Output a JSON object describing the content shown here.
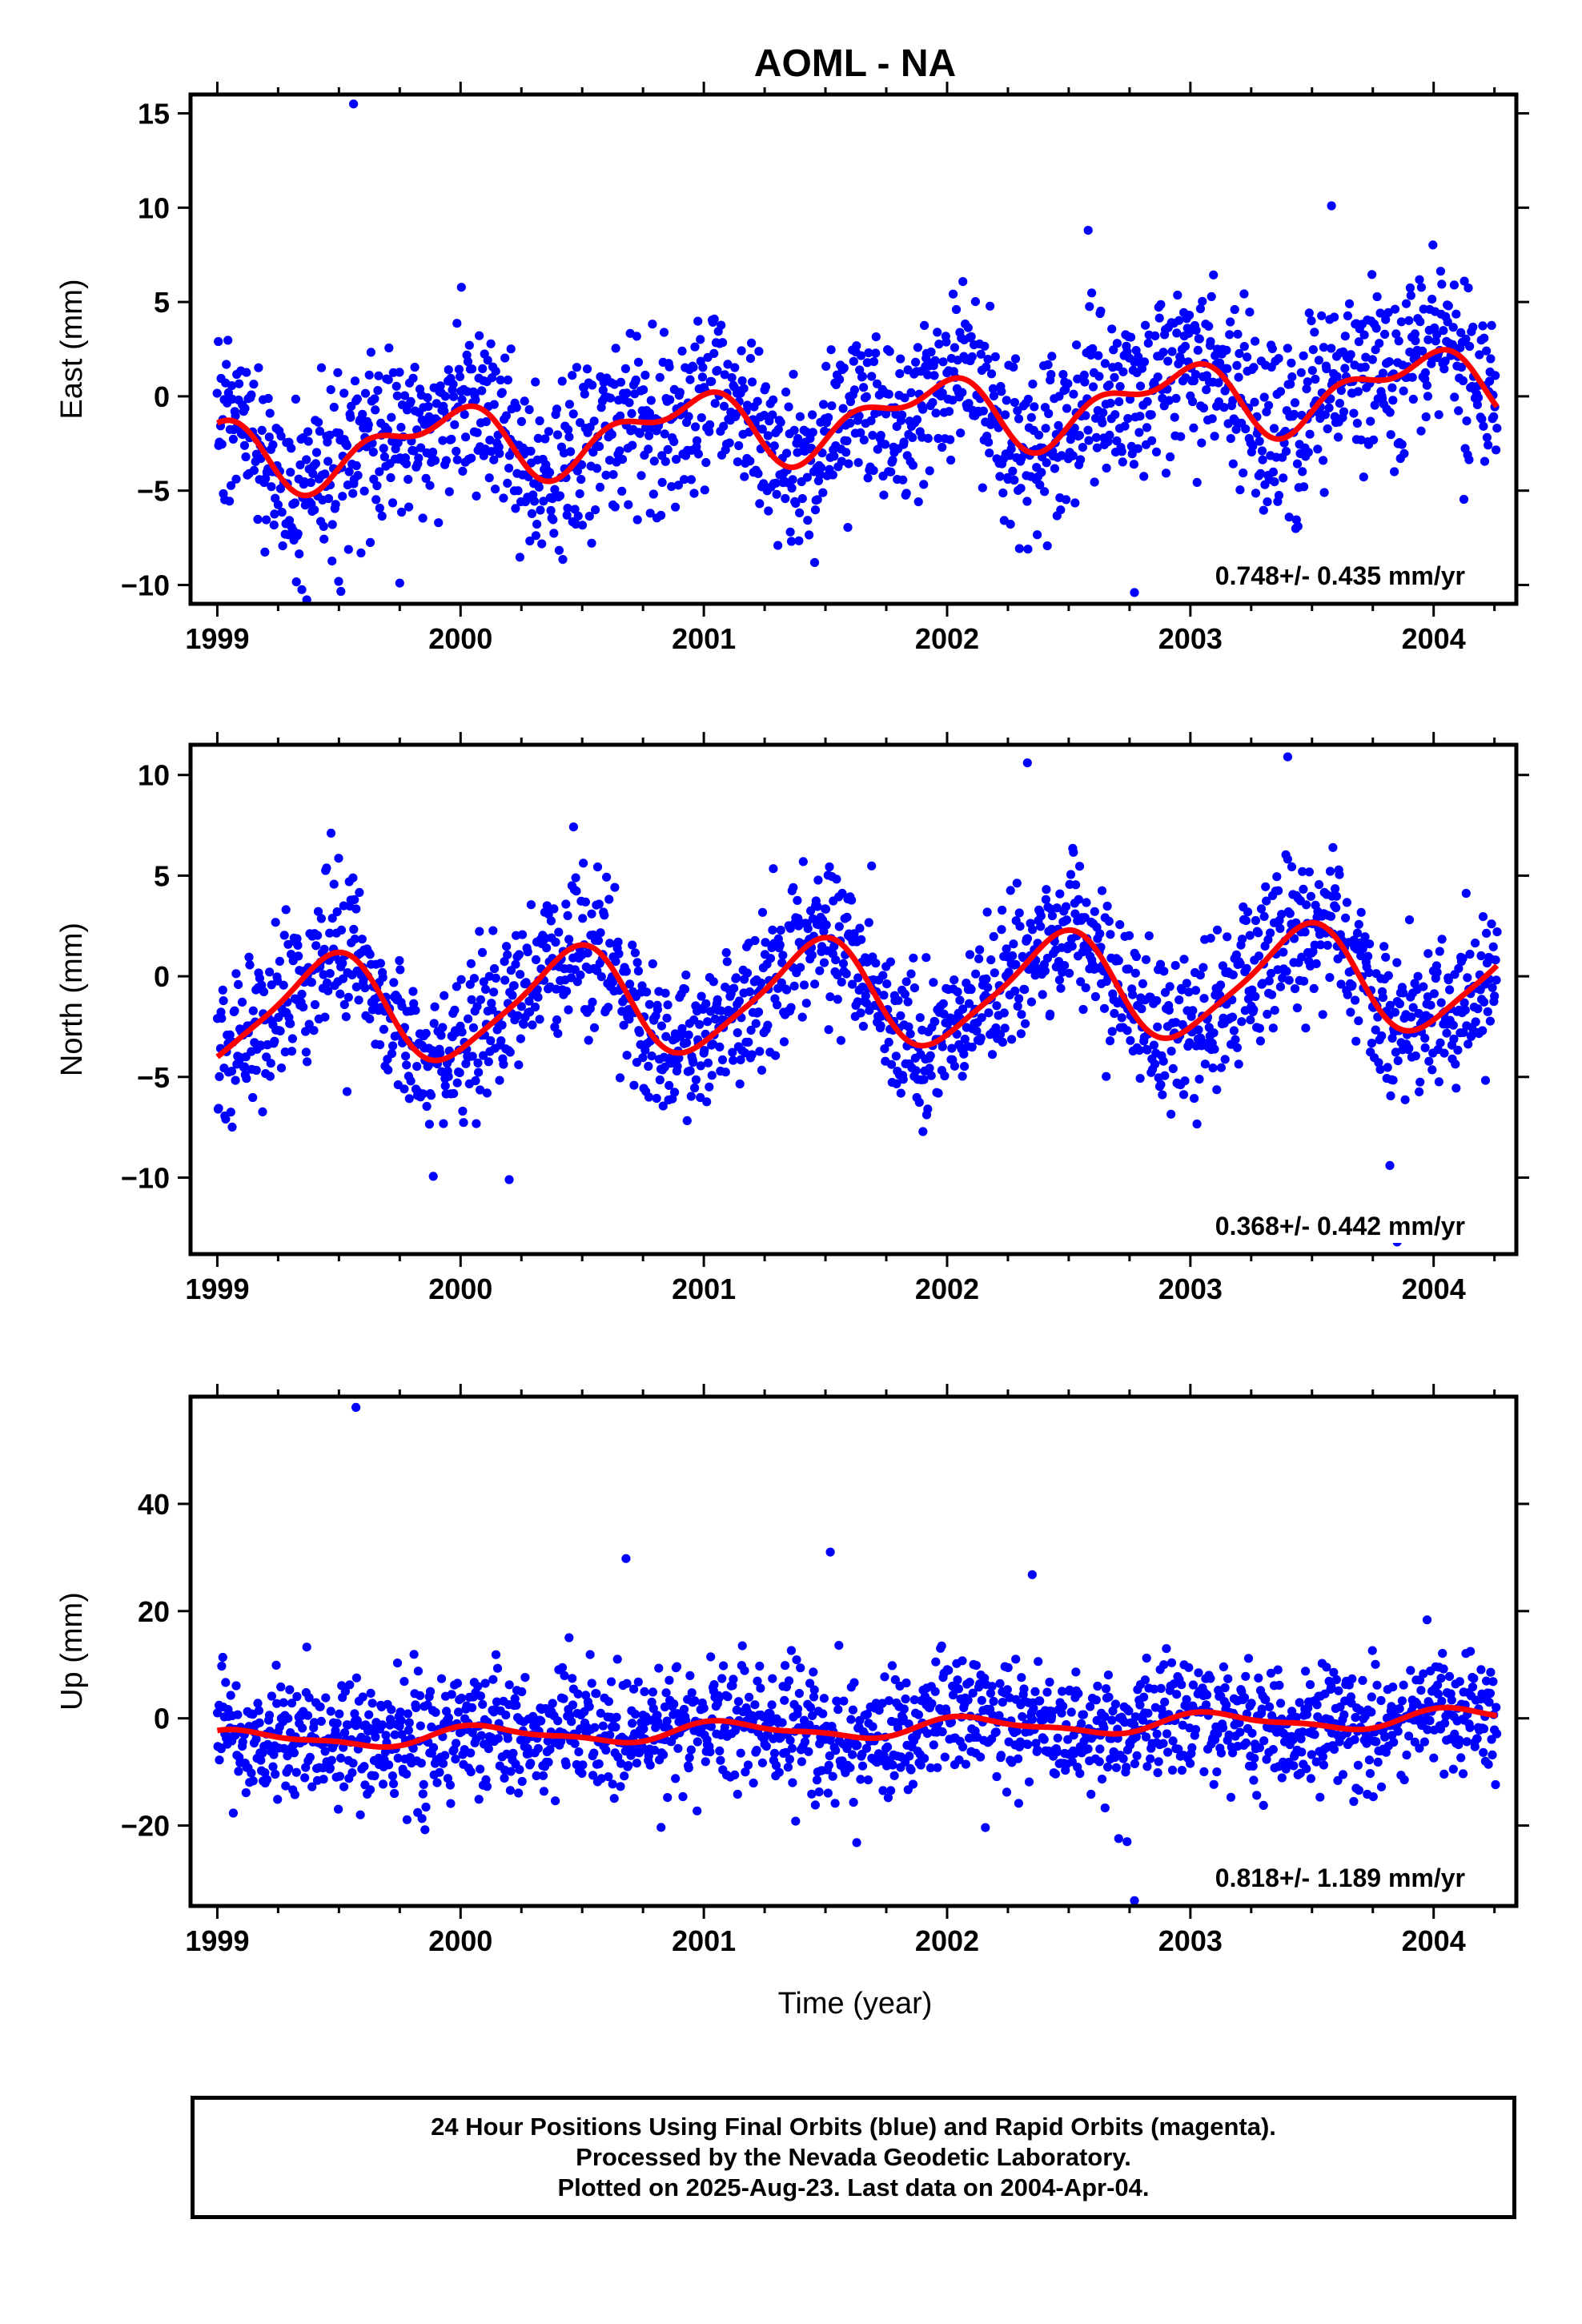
{
  "title": "AOML - NA",
  "xlabel": "Time (year)",
  "footer": {
    "line1": "24 Hour Positions Using Final Orbits (blue) and Rapid Orbits (magenta).",
    "line2": "Processed by the Nevada Geodetic Laboratory.",
    "line3": "Plotted on 2025-Aug-23. Last data on 2004-Apr-04."
  },
  "colors": {
    "points": "#0000ff",
    "fit": "#ff0000"
  },
  "chart_data": [
    {
      "type": "scatter",
      "ylabel": "East (mm)",
      "rate": "0.748+/- 0.435 mm/yr",
      "xlim": [
        1998.89,
        2004.34
      ],
      "ylim": [
        -11,
        16
      ],
      "xticks": [
        1999,
        2000,
        2001,
        2002,
        2003,
        2004
      ],
      "yticks": [
        15,
        10,
        5,
        0,
        -5,
        -10
      ],
      "x_start": 1999.0,
      "x_end": 2004.26,
      "trend": {
        "rate": 0.748,
        "offset": -1.2
      },
      "seasonal": {
        "a1": 1.6,
        "ph1": 2.1,
        "a2": 0.9,
        "ph2": 0.4
      },
      "scatter_sd": 2.3,
      "outliers": [
        [
          1999.56,
          15.5
        ],
        [
          2002.58,
          8.8
        ],
        [
          2002.77,
          -10.4
        ],
        [
          1999.75,
          -9.9
        ],
        [
          2003.58,
          10.1
        ]
      ],
      "series": [
        {
          "name": "Final Orbits",
          "kind": "points",
          "points_count": 1700
        },
        {
          "name": "Fit",
          "kind": "line"
        }
      ]
    },
    {
      "type": "scatter",
      "ylabel": "North (mm)",
      "rate": "0.368+/- 0.442 mm/yr",
      "xlim": [
        1998.89,
        2004.34
      ],
      "ylim": [
        -13.8,
        11.5
      ],
      "xticks": [
        1999,
        2000,
        2001,
        2002,
        2003,
        2004
      ],
      "yticks": [
        10,
        5,
        0,
        -5,
        -10
      ],
      "x_start": 1999.0,
      "x_end": 2004.26,
      "trend": {
        "rate": 0.368,
        "offset": -0.9
      },
      "seasonal": {
        "a1": 2.6,
        "ph1": -1.3,
        "a2": 0.5,
        "ph2": 0.8
      },
      "scatter_sd": 1.9,
      "outliers": [
        [
          2003.4,
          10.9
        ],
        [
          2002.33,
          10.6
        ],
        [
          2000.2,
          -10.1
        ],
        [
          2003.82,
          -9.4
        ],
        [
          2003.85,
          -13.2
        ]
      ],
      "series": [
        {
          "name": "Final Orbits",
          "kind": "points",
          "points_count": 1700
        },
        {
          "name": "Fit",
          "kind": "line"
        }
      ]
    },
    {
      "type": "scatter",
      "ylabel": "Up (mm)",
      "rate": "0.818+/- 1.189 mm/yr",
      "xlim": [
        1998.89,
        2004.34
      ],
      "ylim": [
        -35,
        60
      ],
      "xticks": [
        1999,
        2000,
        2001,
        2002,
        2003,
        2004
      ],
      "yticks": [
        40,
        20,
        0,
        -20
      ],
      "x_start": 1999.0,
      "x_end": 2004.26,
      "trend": {
        "rate": 0.818,
        "offset": -2.0
      },
      "seasonal": {
        "a1": 1.6,
        "ph1": 0.9,
        "a2": 0.6,
        "ph2": 1.5
      },
      "scatter_sd": 5.8,
      "outliers": [
        [
          1999.57,
          58.0
        ],
        [
          2000.68,
          29.8
        ],
        [
          2001.52,
          31.0
        ],
        [
          2002.35,
          26.8
        ],
        [
          2002.77,
          -34.0
        ],
        [
          2002.74,
          -23.0
        ]
      ],
      "series": [
        {
          "name": "Final Orbits",
          "kind": "points",
          "points_count": 1700
        },
        {
          "name": "Fit",
          "kind": "line"
        }
      ]
    }
  ]
}
